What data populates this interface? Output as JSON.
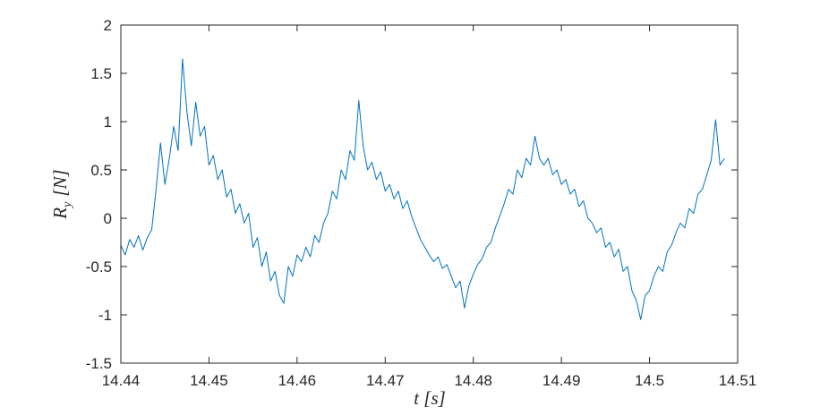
{
  "chart_data": {
    "type": "line",
    "xlabel": "t [s]",
    "ylabel": {
      "symbol": "R",
      "subscript": "y",
      "unit": "[N]"
    },
    "xlim": [
      14.44,
      14.51
    ],
    "xticks": [
      14.44,
      14.45,
      14.46,
      14.47,
      14.48,
      14.49,
      14.5,
      14.51
    ],
    "ylim": [
      -1.5,
      2
    ],
    "yticks": [
      -1.5,
      -1,
      -0.5,
      0,
      0.5,
      1,
      1.5,
      2
    ],
    "grid": false,
    "x": [
      14.44,
      14.4405,
      14.441,
      14.4415,
      14.442,
      14.4425,
      14.443,
      14.4435,
      14.444,
      14.4445,
      14.445,
      14.4455,
      14.446,
      14.4465,
      14.447,
      14.4475,
      14.448,
      14.4485,
      14.449,
      14.4495,
      14.45,
      14.4505,
      14.451,
      14.4515,
      14.452,
      14.4525,
      14.453,
      14.4535,
      14.454,
      14.4545,
      14.455,
      14.4555,
      14.456,
      14.4565,
      14.457,
      14.4575,
      14.458,
      14.4585,
      14.459,
      14.4595,
      14.46,
      14.4605,
      14.461,
      14.4615,
      14.462,
      14.4625,
      14.463,
      14.4635,
      14.464,
      14.4645,
      14.465,
      14.4655,
      14.466,
      14.4665,
      14.467,
      14.4675,
      14.468,
      14.4685,
      14.469,
      14.4695,
      14.47,
      14.4705,
      14.471,
      14.4715,
      14.472,
      14.4725,
      14.473,
      14.4735,
      14.474,
      14.4745,
      14.475,
      14.4755,
      14.476,
      14.4765,
      14.477,
      14.4775,
      14.478,
      14.4785,
      14.479,
      14.4795,
      14.48,
      14.4805,
      14.481,
      14.4815,
      14.482,
      14.4825,
      14.483,
      14.4835,
      14.484,
      14.4845,
      14.485,
      14.4855,
      14.486,
      14.4865,
      14.487,
      14.4875,
      14.488,
      14.4885,
      14.489,
      14.4895,
      14.49,
      14.4905,
      14.491,
      14.4915,
      14.492,
      14.4925,
      14.493,
      14.4935,
      14.494,
      14.4945,
      14.495,
      14.4955,
      14.496,
      14.4965,
      14.497,
      14.4975,
      14.498,
      14.4985,
      14.499,
      14.4995,
      14.5,
      14.5005,
      14.501,
      14.5015,
      14.502,
      14.5025,
      14.503,
      14.5035,
      14.504,
      14.5045,
      14.505,
      14.5055,
      14.506,
      14.5065,
      14.507,
      14.5075,
      14.508,
      14.5085
    ],
    "series": [
      {
        "color": "#0072bd",
        "values": [
          -0.28,
          -0.38,
          -0.22,
          -0.3,
          -0.18,
          -0.33,
          -0.2,
          -0.12,
          0.3,
          0.78,
          0.35,
          0.62,
          0.95,
          0.7,
          1.65,
          1.1,
          0.75,
          1.2,
          0.85,
          0.95,
          0.55,
          0.65,
          0.4,
          0.5,
          0.22,
          0.3,
          0.05,
          0.15,
          -0.05,
          0.05,
          -0.3,
          -0.2,
          -0.5,
          -0.35,
          -0.65,
          -0.55,
          -0.8,
          -0.88,
          -0.5,
          -0.6,
          -0.38,
          -0.45,
          -0.3,
          -0.4,
          -0.18,
          -0.25,
          -0.05,
          0.05,
          0.28,
          0.2,
          0.5,
          0.4,
          0.7,
          0.6,
          1.22,
          0.75,
          0.5,
          0.58,
          0.4,
          0.48,
          0.28,
          0.35,
          0.2,
          0.28,
          0.1,
          0.18,
          0.02,
          -0.1,
          -0.22,
          -0.3,
          -0.38,
          -0.45,
          -0.4,
          -0.52,
          -0.48,
          -0.6,
          -0.72,
          -0.65,
          -0.93,
          -0.7,
          -0.58,
          -0.48,
          -0.42,
          -0.3,
          -0.25,
          -0.1,
          0.02,
          0.15,
          0.3,
          0.25,
          0.5,
          0.42,
          0.62,
          0.55,
          0.85,
          0.62,
          0.55,
          0.62,
          0.45,
          0.5,
          0.35,
          0.4,
          0.25,
          0.3,
          0.12,
          0.18,
          0,
          -0.05,
          -0.15,
          -0.1,
          -0.3,
          -0.25,
          -0.4,
          -0.32,
          -0.55,
          -0.5,
          -0.75,
          -0.85,
          -1.05,
          -0.8,
          -0.75,
          -0.6,
          -0.5,
          -0.55,
          -0.35,
          -0.28,
          -0.15,
          -0.05,
          -0.1,
          0.1,
          0.05,
          0.25,
          0.3,
          0.45,
          0.6,
          1.02,
          0.55,
          0.62
        ]
      }
    ]
  }
}
